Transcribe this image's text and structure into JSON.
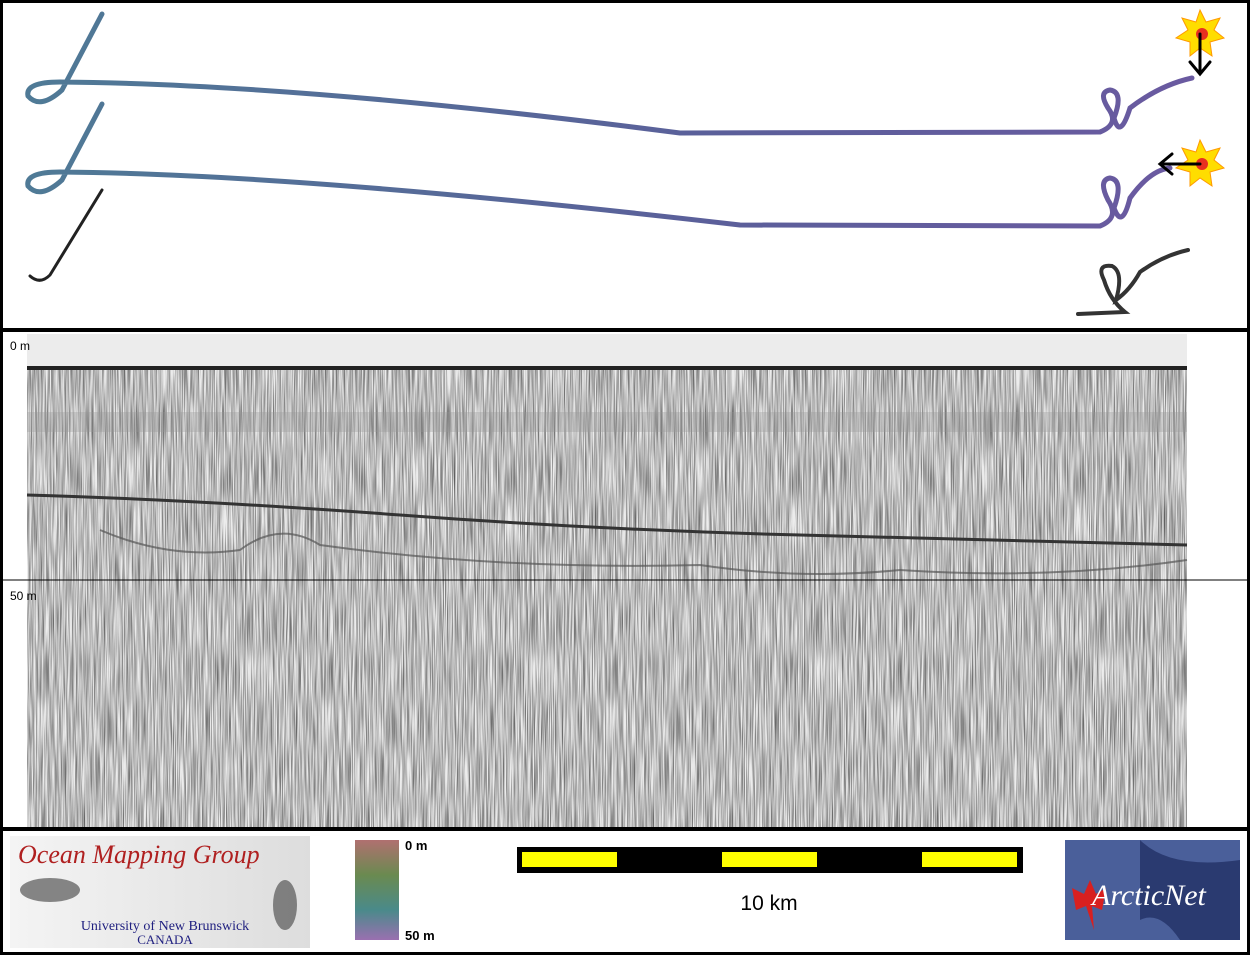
{
  "profile": {
    "depth_labels": [
      "0 m",
      "50 m"
    ]
  },
  "footer": {
    "logo_title": "Ocean Mapping Group",
    "logo_university": "University of New Brunswick",
    "logo_country": "CANADA",
    "colorbar_labels": [
      "0 m",
      "50 m"
    ],
    "scale_label": "10 km",
    "partner_logo": "ArcticNet"
  }
}
